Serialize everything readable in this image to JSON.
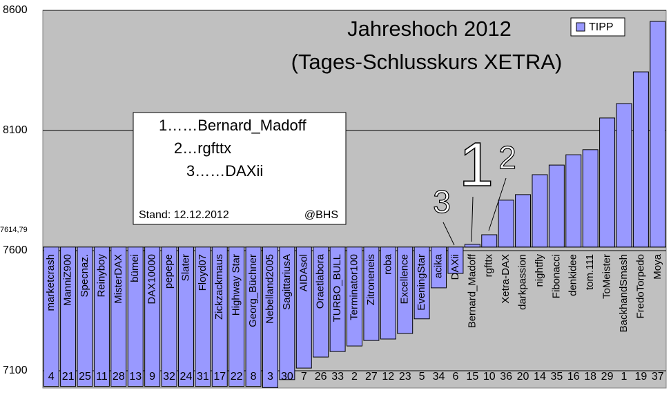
{
  "chart_data": {
    "type": "bar",
    "title": "Jahreshoch 2012",
    "subtitle": "(Tages-Schlusskurs XETRA)",
    "categories": [
      "marketcrash",
      "ManniZ900",
      "Specnaz.",
      "Reinyboy",
      "MisterDAX",
      "bümei",
      "DAX10000",
      "pepepe",
      "Slater",
      "Floyd07",
      "Zickzackmaus",
      "Highway Star",
      "Georg_Büchner",
      "Nebelland2005",
      "SagittariusA",
      "AIDAsol",
      "Oraetlabora",
      "TURBO_BULL",
      "Terminator100",
      "Zitroneneis",
      "roba",
      "Excellence",
      "EveningStar",
      "acika",
      "DAXii",
      "Bernard_Madoff",
      "rgfttx",
      "Xetra-DAX",
      "darkpassion",
      "nightfly",
      "Fibonacci",
      "denkidee",
      "tom.111",
      "ToMeister",
      "BackhandSmash",
      "FredoTorpedo",
      "Moya"
    ],
    "ids": [
      4,
      21,
      25,
      11,
      28,
      13,
      9,
      32,
      24,
      31,
      17,
      22,
      8,
      3,
      30,
      7,
      26,
      33,
      2,
      27,
      12,
      23,
      5,
      34,
      6,
      15,
      10,
      36,
      20,
      14,
      35,
      16,
      18,
      29,
      1,
      19,
      37
    ],
    "series": [
      {
        "name": "TIPP",
        "color": "#9999ff",
        "values": [
          7035,
          7035,
          7035,
          7035,
          7035,
          7035,
          7035,
          7035,
          7035,
          7035,
          7035,
          7035,
          7035,
          7030,
          7063,
          7111,
          7157,
          7180,
          7203,
          7226,
          7232,
          7255,
          7316,
          7445,
          7505,
          7626,
          7666,
          7810,
          7833,
          7916,
          7956,
          7999,
          8020,
          8152,
          8212,
          8344,
          8554
        ]
      }
    ],
    "baseline": {
      "value": 7614.79,
      "label": "7614,79"
    },
    "ylim": [
      7028,
      8600
    ],
    "yticks": [
      7100,
      7600,
      8100,
      8600
    ],
    "grid": true,
    "legend": "top-right",
    "box_lines": [
      "1……Bernard_Madoff",
      "2…rgfttx",
      "3……DAXii"
    ],
    "box_footer": [
      "Stand: 12.12.2012",
      "@BHS"
    ],
    "markers": [
      "1",
      "2",
      "3"
    ]
  }
}
